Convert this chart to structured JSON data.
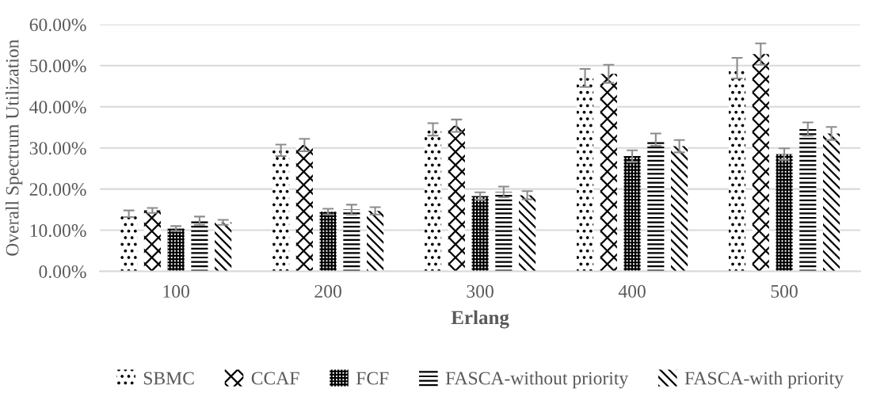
{
  "chart_data": {
    "type": "bar",
    "xlabel": "Erlang",
    "ylabel": "Overall Spectrum Utilization",
    "categories": [
      "100",
      "200",
      "300",
      "400",
      "500"
    ],
    "series": [
      {
        "name": "SBMC",
        "color": "#000000",
        "values": [
          14.0,
          29.4,
          34.5,
          47.0,
          49.4
        ],
        "errors": [
          0.8,
          1.4,
          1.5,
          2.2,
          2.5
        ]
      },
      {
        "name": "CCAF",
        "color": "#000000",
        "values": [
          14.8,
          30.7,
          35.4,
          48.0,
          52.8
        ],
        "errors": [
          0.6,
          1.5,
          1.5,
          2.2,
          2.6
        ]
      },
      {
        "name": "FCF",
        "color": "#000000",
        "values": [
          10.4,
          14.5,
          18.3,
          28.0,
          28.5
        ],
        "errors": [
          0.6,
          0.7,
          0.9,
          1.4,
          1.4
        ]
      },
      {
        "name": "FASCA-without priority",
        "color": "#000000",
        "values": [
          12.3,
          15.0,
          19.3,
          32.0,
          34.6
        ],
        "errors": [
          1.0,
          1.2,
          1.3,
          1.5,
          1.6
        ]
      },
      {
        "name": "FASCA-with priority",
        "color": "#000000",
        "values": [
          11.9,
          14.7,
          18.5,
          30.4,
          33.5
        ],
        "errors": [
          0.6,
          0.9,
          1.0,
          1.5,
          1.6
        ]
      }
    ],
    "ylim": [
      0,
      60
    ],
    "yticks": [
      {
        "value": 0,
        "label": "0.00%"
      },
      {
        "value": 10,
        "label": "10.00%"
      },
      {
        "value": 20,
        "label": "20.00%"
      },
      {
        "value": 30,
        "label": "30.00%"
      },
      {
        "value": 40,
        "label": "40.00%"
      },
      {
        "value": 50,
        "label": "50.00%"
      },
      {
        "value": 60,
        "label": "60.00%"
      }
    ],
    "grid": "y",
    "legend": "bottom"
  }
}
